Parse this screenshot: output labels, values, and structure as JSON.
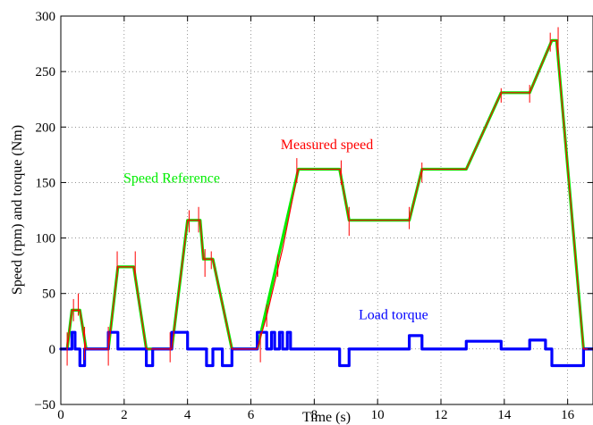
{
  "chart_data": {
    "type": "line",
    "xlabel": "Time (s)",
    "ylabel": "Speed (rpm) and torque (Nm)",
    "xlim": [
      0,
      16.8
    ],
    "ylim": [
      -50,
      300
    ],
    "xticks": [
      0,
      2,
      4,
      6,
      8,
      10,
      12,
      14,
      16
    ],
    "yticks": [
      -50,
      0,
      50,
      100,
      150,
      200,
      250,
      300
    ],
    "grid": true,
    "annotations": [
      {
        "text": "Measured speed",
        "x": 8.4,
        "y": 180,
        "color": "#ff0000"
      },
      {
        "text": "Speed Reference",
        "x": 3.5,
        "y": 150,
        "color": "#00ee00"
      },
      {
        "text": "Load torque",
        "x": 10.5,
        "y": 27,
        "color": "#0000ff"
      }
    ],
    "series": [
      {
        "color": "#ff0000",
        "x": [
          0.2,
          0.35,
          0.6,
          0.8,
          1.5,
          1.8,
          2.3,
          2.7,
          3.5,
          4.0,
          4.4,
          4.5,
          4.8,
          5.4,
          6.2,
          6.5,
          7.0,
          7.5,
          8.8,
          9.1,
          11.0,
          11.4,
          12.8,
          13.9,
          14.8,
          15.5,
          15.65,
          16.5,
          16.8
        ],
        "y": [
          0,
          35,
          35,
          0,
          0,
          74,
          74,
          0,
          0,
          116,
          116,
          81,
          81,
          0,
          0,
          30,
          90,
          162,
          162,
          116,
          116,
          162,
          162,
          231,
          231,
          278,
          278,
          0,
          0
        ],
        "spikes": [
          {
            "x": 0.2,
            "lo": -15,
            "hi": 15
          },
          {
            "x": 0.4,
            "lo": 25,
            "hi": 45
          },
          {
            "x": 0.55,
            "lo": 30,
            "hi": 50
          },
          {
            "x": 0.75,
            "lo": -10,
            "hi": 20
          },
          {
            "x": 1.5,
            "lo": -15,
            "hi": 20
          },
          {
            "x": 1.78,
            "lo": 65,
            "hi": 88
          },
          {
            "x": 2.35,
            "lo": 62,
            "hi": 88
          },
          {
            "x": 3.45,
            "lo": -12,
            "hi": 15
          },
          {
            "x": 4.05,
            "lo": 105,
            "hi": 125
          },
          {
            "x": 4.35,
            "lo": 105,
            "hi": 128
          },
          {
            "x": 4.55,
            "lo": 65,
            "hi": 90
          },
          {
            "x": 4.75,
            "lo": 72,
            "hi": 88
          },
          {
            "x": 6.3,
            "lo": -12,
            "hi": 15
          },
          {
            "x": 6.5,
            "lo": 20,
            "hi": 40
          },
          {
            "x": 6.85,
            "lo": 65,
            "hi": 85
          },
          {
            "x": 7.45,
            "lo": 150,
            "hi": 172
          },
          {
            "x": 8.85,
            "lo": 148,
            "hi": 170
          },
          {
            "x": 9.1,
            "lo": 102,
            "hi": 128
          },
          {
            "x": 11.0,
            "lo": 108,
            "hi": 128
          },
          {
            "x": 11.4,
            "lo": 150,
            "hi": 168
          },
          {
            "x": 13.9,
            "lo": 222,
            "hi": 235
          },
          {
            "x": 14.8,
            "lo": 222,
            "hi": 238
          },
          {
            "x": 15.45,
            "lo": 268,
            "hi": 285
          },
          {
            "x": 15.7,
            "lo": 265,
            "hi": 290
          }
        ]
      },
      {
        "color": "#00ee00",
        "x": [
          0.2,
          0.35,
          0.6,
          0.8,
          1.5,
          1.8,
          2.3,
          2.7,
          3.5,
          4.0,
          4.4,
          4.5,
          4.8,
          5.4,
          6.2,
          7.5,
          8.8,
          9.1,
          11.0,
          11.4,
          12.8,
          13.9,
          14.8,
          15.5,
          15.65,
          16.5,
          16.8
        ],
        "y": [
          0,
          35,
          35,
          0,
          0,
          74,
          74,
          0,
          0,
          116,
          116,
          81,
          81,
          0,
          0,
          162,
          162,
          116,
          116,
          162,
          162,
          231,
          231,
          278,
          278,
          0,
          0
        ]
      },
      {
        "color": "#0000ff",
        "x": [
          0,
          0.35,
          0.35,
          0.45,
          0.45,
          0.6,
          0.6,
          0.75,
          0.75,
          0.8,
          0.8,
          1.5,
          1.5,
          1.8,
          1.8,
          2.3,
          2.3,
          2.7,
          2.7,
          2.9,
          2.9,
          3.5,
          3.5,
          4.0,
          4.0,
          4.4,
          4.4,
          4.6,
          4.6,
          4.8,
          4.8,
          5.1,
          5.1,
          5.4,
          5.4,
          6.2,
          6.2,
          6.5,
          6.5,
          6.65,
          6.65,
          6.75,
          6.75,
          6.9,
          6.9,
          7.0,
          7.0,
          7.15,
          7.15,
          7.25,
          7.25,
          7.5,
          7.5,
          8.8,
          8.8,
          9.1,
          9.1,
          11.0,
          11.0,
          11.4,
          11.4,
          12.8,
          12.8,
          13.9,
          13.9,
          14.2,
          14.2,
          14.8,
          14.8,
          15.3,
          15.3,
          15.5,
          15.5,
          16.5,
          16.5,
          16.8
        ],
        "y": [
          0,
          0,
          15,
          15,
          0,
          0,
          -15,
          -15,
          0,
          0,
          0,
          0,
          15,
          15,
          0,
          0,
          0,
          0,
          -15,
          -15,
          0,
          0,
          15,
          15,
          0,
          0,
          0,
          0,
          -15,
          -15,
          0,
          0,
          -15,
          -15,
          0,
          0,
          15,
          15,
          0,
          0,
          15,
          15,
          0,
          0,
          15,
          15,
          0,
          0,
          15,
          15,
          0,
          0,
          0,
          0,
          -15,
          -15,
          0,
          0,
          12,
          12,
          0,
          0,
          7,
          7,
          0,
          0,
          0,
          0,
          8,
          8,
          0,
          0,
          -15,
          -15,
          0,
          0
        ]
      }
    ]
  }
}
